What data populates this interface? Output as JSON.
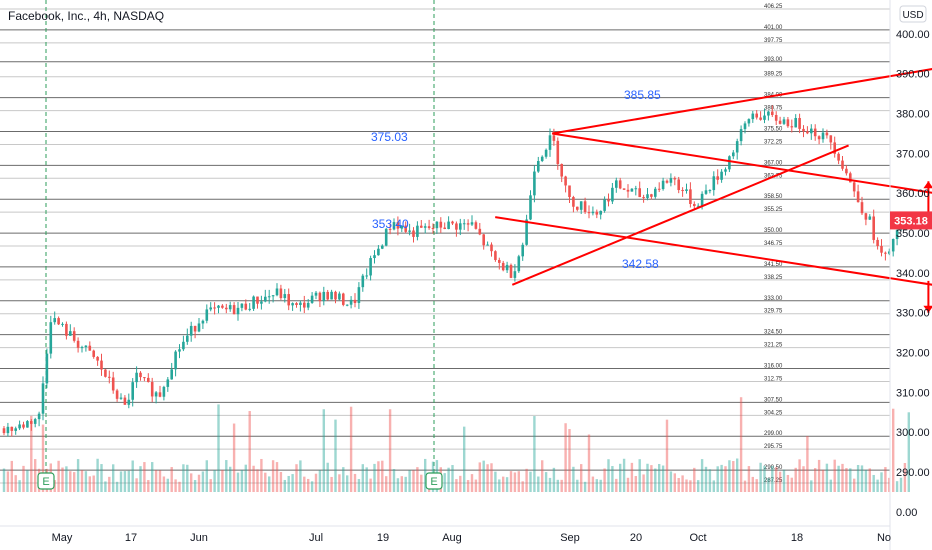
{
  "chart_data": {
    "type": "candlestick",
    "title": "Facebook, Inc., 4h, NASDAQ",
    "currency_label": "USD",
    "y_axis": {
      "range": [
        285,
        406
      ],
      "ticks": [
        290,
        300,
        310,
        320,
        330,
        340,
        350,
        360,
        370,
        380,
        390,
        400
      ],
      "bottom_label": "0.00"
    },
    "x_axis": {
      "tick_labels": [
        "May",
        "17",
        "Jun",
        "Jul",
        "19",
        "Aug",
        "Sep",
        "20",
        "Oct",
        "18",
        "No"
      ]
    },
    "current_price": 353.18,
    "horizontal_levels": [
      406.25,
      401.0,
      397.75,
      393.0,
      389.25,
      384.0,
      380.75,
      375.5,
      372.25,
      367.0,
      363.75,
      358.5,
      355.25,
      350.0,
      346.75,
      341.5,
      338.25,
      333.0,
      329.75,
      324.5,
      321.25,
      316.0,
      312.75,
      307.5,
      304.25,
      299.0,
      295.75,
      290.5,
      287.25
    ],
    "annotations": [
      {
        "text": "385.85"
      },
      {
        "text": "375.03"
      },
      {
        "text": "353.40"
      },
      {
        "text": "342.58"
      }
    ],
    "earnings_markers": [
      "E",
      "E"
    ],
    "price_path": [
      {
        "date": "2021-04-23",
        "price": 301
      },
      {
        "date": "2021-04-27",
        "price": 304
      },
      {
        "date": "2021-04-29",
        "price": 329
      },
      {
        "date": "2021-05-04",
        "price": 322
      },
      {
        "date": "2021-05-07",
        "price": 318
      },
      {
        "date": "2021-05-12",
        "price": 306
      },
      {
        "date": "2021-05-14",
        "price": 314
      },
      {
        "date": "2021-05-18",
        "price": 309
      },
      {
        "date": "2021-05-21",
        "price": 320
      },
      {
        "date": "2021-05-26",
        "price": 330
      },
      {
        "date": "2021-06-01",
        "price": 331
      },
      {
        "date": "2021-06-04",
        "price": 333
      },
      {
        "date": "2021-06-08",
        "price": 335
      },
      {
        "date": "2021-06-11",
        "price": 331
      },
      {
        "date": "2021-06-16",
        "price": 335
      },
      {
        "date": "2021-06-21",
        "price": 332
      },
      {
        "date": "2021-06-24",
        "price": 342
      },
      {
        "date": "2021-06-28",
        "price": 353
      },
      {
        "date": "2021-07-01",
        "price": 350
      },
      {
        "date": "2021-07-07",
        "price": 352
      },
      {
        "date": "2021-07-12",
        "price": 352
      },
      {
        "date": "2021-07-16",
        "price": 343
      },
      {
        "date": "2021-07-19",
        "price": 340
      },
      {
        "date": "2021-07-21",
        "price": 348
      },
      {
        "date": "2021-07-23",
        "price": 368
      },
      {
        "date": "2021-07-26",
        "price": 374
      },
      {
        "date": "2021-07-29",
        "price": 358
      },
      {
        "date": "2021-08-03",
        "price": 355
      },
      {
        "date": "2021-08-06",
        "price": 362
      },
      {
        "date": "2021-08-11",
        "price": 359
      },
      {
        "date": "2021-08-16",
        "price": 364
      },
      {
        "date": "2021-08-20",
        "price": 357
      },
      {
        "date": "2021-08-25",
        "price": 366
      },
      {
        "date": "2021-08-30",
        "price": 380
      },
      {
        "date": "2021-09-02",
        "price": 379
      },
      {
        "date": "2021-09-08",
        "price": 377
      },
      {
        "date": "2021-09-13",
        "price": 373
      },
      {
        "date": "2021-09-16",
        "price": 364
      },
      {
        "date": "2021-09-17",
        "price": 360
      },
      {
        "date": "2021-09-20",
        "price": 352
      },
      {
        "date": "2021-09-21",
        "price": 346
      },
      {
        "date": "2021-09-23",
        "price": 343
      },
      {
        "date": "2021-09-24",
        "price": 350
      },
      {
        "date": "2021-09-27",
        "price": 353
      }
    ],
    "trendlines": [
      {
        "from": {
          "date": "2021-07-26",
          "price": 375
        },
        "to": {
          "date": "2021-11-06",
          "price": 400
        },
        "color": "#ff0000"
      },
      {
        "from": {
          "date": "2021-07-26",
          "price": 375
        },
        "to": {
          "date": "2021-11-06",
          "price": 352
        },
        "color": "#ff0000"
      },
      {
        "from": {
          "date": "2021-07-16",
          "price": 354
        },
        "to": {
          "date": "2021-11-06",
          "price": 329
        },
        "color": "#ff0000"
      },
      {
        "from": {
          "date": "2021-07-19",
          "price": 337
        },
        "to": {
          "date": "2021-09-16",
          "price": 372
        },
        "color": "#ff0000"
      }
    ],
    "arrows": [
      {
        "direction": "up",
        "date": "2021-09-30",
        "from_price": 354,
        "to_price": 363
      },
      {
        "direction": "down",
        "date": "2021-09-30",
        "from_price": 338,
        "to_price": 330
      }
    ]
  }
}
